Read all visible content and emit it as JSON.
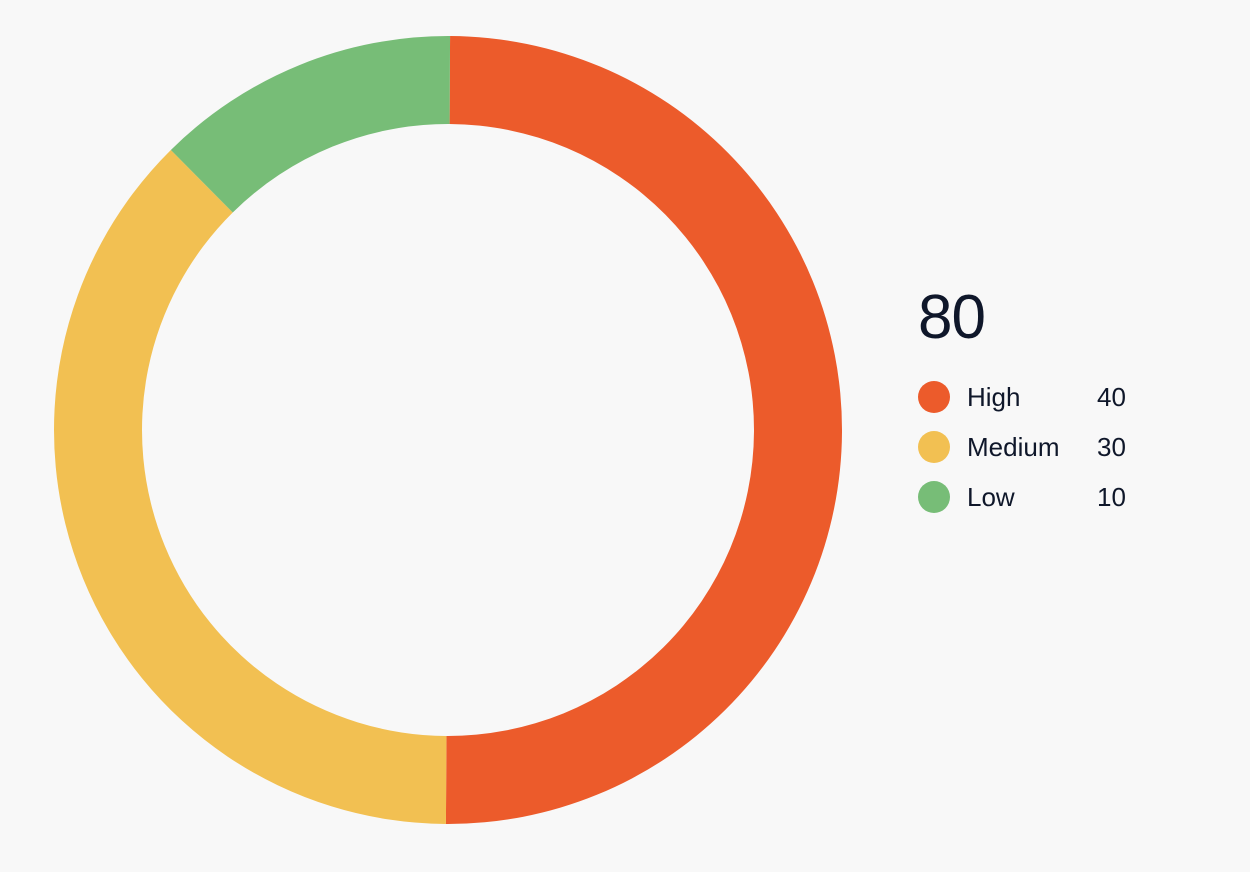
{
  "chart_data": {
    "type": "pie",
    "title": "",
    "total": "80",
    "slices": [
      {
        "label": "High",
        "value": 40,
        "color": "#ec5b2b"
      },
      {
        "label": "Medium",
        "value": 30,
        "color": "#f2c052"
      },
      {
        "label": "Low",
        "value": 10,
        "color": "#77bd77"
      }
    ],
    "legend_position": "right",
    "donut": true
  },
  "legend": {
    "total": "80",
    "items": [
      {
        "label": "High",
        "value": "40",
        "color": "#ec5b2b"
      },
      {
        "label": "Medium",
        "value": "30",
        "color": "#f2c052"
      },
      {
        "label": "Low",
        "value": "10",
        "color": "#77bd77"
      }
    ]
  }
}
